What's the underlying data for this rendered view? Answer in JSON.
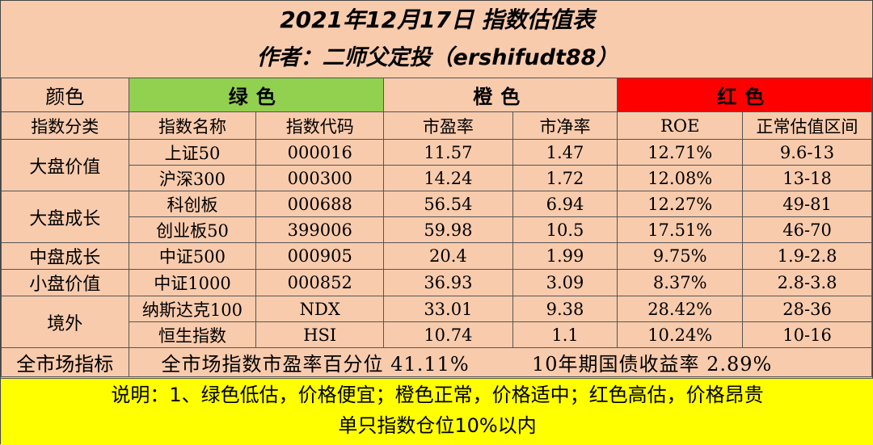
{
  "title": "2021年12月17日 指数估值表",
  "author": "作者：二师父定投（ershifudt88）",
  "color_row": {
    "label": "颜色",
    "green": "绿色",
    "orange": "橙色",
    "red": "红色"
  },
  "colors": {
    "background": "#F8CBAD",
    "green": "#92D050",
    "red": "#FF0000",
    "note_bg": "#FFFF00"
  },
  "headers": [
    "指数分类",
    "指数名称",
    "指数代码",
    "市盈率",
    "市净率",
    "ROE",
    "正常估值区间"
  ],
  "categories": [
    "大盘价值",
    "大盘成长",
    "中盘成长",
    "小盘价值",
    "境外"
  ],
  "rows": [
    {
      "name": "上证50",
      "code": "000016",
      "pe": "11.57",
      "pb": "1.47",
      "roe": "12.71%",
      "range": "9.6-13"
    },
    {
      "name": "沪深300",
      "code": "000300",
      "pe": "14.24",
      "pb": "1.72",
      "roe": "12.08%",
      "range": "13-18"
    },
    {
      "name": "科创板",
      "code": "000688",
      "pe": "56.54",
      "pb": "6.94",
      "roe": "12.27%",
      "range": "49-81"
    },
    {
      "name": "创业板50",
      "code": "399006",
      "pe": "59.98",
      "pb": "10.5",
      "roe": "17.51%",
      "range": "46-70"
    },
    {
      "name": "中证500",
      "code": "000905",
      "pe": "20.4",
      "pb": "1.99",
      "roe": "9.75%",
      "range": "1.9-2.8"
    },
    {
      "name": "中证1000",
      "code": "000852",
      "pe": "36.93",
      "pb": "3.09",
      "roe": "8.37%",
      "range": "2.8-3.8"
    },
    {
      "name": "纳斯达克100",
      "code": "NDX",
      "pe": "33.01",
      "pb": "9.38",
      "roe": "28.42%",
      "range": "28-36"
    },
    {
      "name": "恒生指数",
      "code": "HSI",
      "pe": "10.74",
      "pb": "1.1",
      "roe": "10.24%",
      "range": "10-16"
    }
  ],
  "summary": {
    "label": "全市场指标",
    "pe_percentile": "全市场指数市盈率百分位 41.11%",
    "bond_yield": "10年期国债收益率 2.89%"
  },
  "note": {
    "line1": "说明：1、绿色低估，价格便宜；橙色正常，价格适中；红色高估，价格昂贵",
    "line2": "单只指数仓位10%以内"
  }
}
